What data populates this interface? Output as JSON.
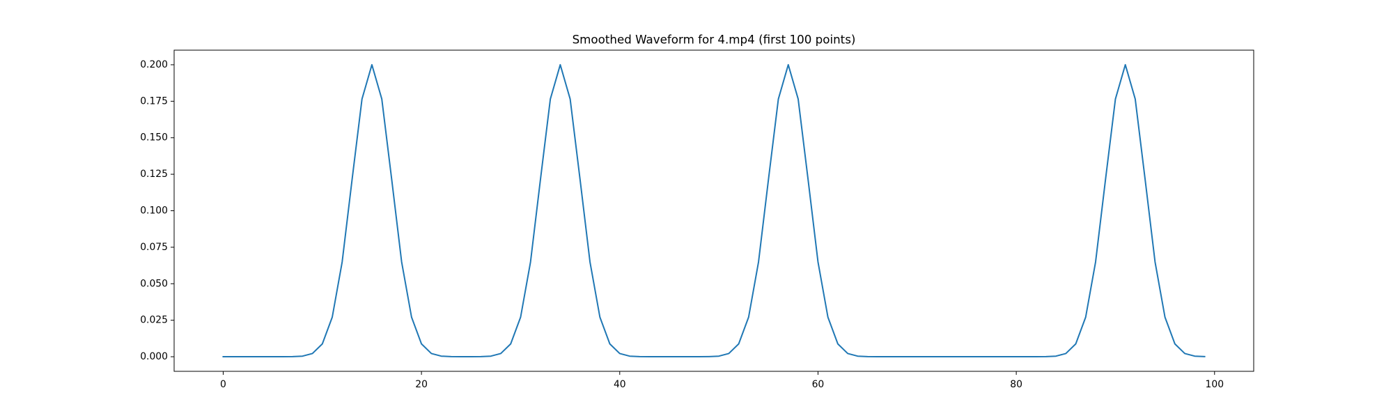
{
  "chart_data": {
    "type": "line",
    "title": "Smoothed Waveform for 4.mp4 (first 100 points)",
    "x": [
      0,
      1,
      2,
      3,
      4,
      5,
      6,
      7,
      8,
      9,
      10,
      11,
      12,
      13,
      14,
      15,
      16,
      17,
      18,
      19,
      20,
      21,
      22,
      23,
      24,
      25,
      26,
      27,
      28,
      29,
      30,
      31,
      32,
      33,
      34,
      35,
      36,
      37,
      38,
      39,
      40,
      41,
      42,
      43,
      44,
      45,
      46,
      47,
      48,
      49,
      50,
      51,
      52,
      53,
      54,
      55,
      56,
      57,
      58,
      59,
      60,
      61,
      62,
      63,
      64,
      65,
      66,
      67,
      68,
      69,
      70,
      71,
      72,
      73,
      74,
      75,
      76,
      77,
      78,
      79,
      80,
      81,
      82,
      83,
      84,
      85,
      86,
      87,
      88,
      89,
      90,
      91,
      92,
      93,
      94,
      95,
      96,
      97,
      98,
      99
    ],
    "values": [
      0,
      0,
      0,
      0,
      0,
      0,
      0,
      0.0001,
      0.0004,
      0.0022,
      0.0088,
      0.0271,
      0.0649,
      0.1213,
      0.1765,
      0.2,
      0.1765,
      0.1213,
      0.0649,
      0.0271,
      0.0088,
      0.0022,
      0.0004,
      0.0001,
      0,
      0,
      0.0001,
      0.0004,
      0.0022,
      0.0088,
      0.0271,
      0.0649,
      0.1213,
      0.1765,
      0.2,
      0.1765,
      0.1213,
      0.0649,
      0.0271,
      0.0088,
      0.0022,
      0.0004,
      0.0001,
      0,
      0,
      0,
      0,
      0,
      0,
      0.0001,
      0.0004,
      0.0022,
      0.0088,
      0.0271,
      0.0649,
      0.1213,
      0.1765,
      0.2,
      0.1765,
      0.1213,
      0.0649,
      0.0271,
      0.0088,
      0.0022,
      0.0004,
      0.0001,
      0,
      0,
      0,
      0,
      0,
      0,
      0,
      0,
      0,
      0,
      0,
      0,
      0,
      0,
      0,
      0,
      0,
      0.0001,
      0.0004,
      0.0022,
      0.0088,
      0.0271,
      0.0649,
      0.1213,
      0.1765,
      0.2,
      0.1765,
      0.1213,
      0.0649,
      0.0271,
      0.0088,
      0.0022,
      0.0004,
      0.0001
    ],
    "color": "#1f77b4",
    "xlim": [
      -4.95,
      103.95
    ],
    "xticks": [
      0,
      20,
      40,
      60,
      80,
      100
    ],
    "ylim": [
      -0.01,
      0.21
    ],
    "yticks": [
      {
        "value": 0,
        "label": "0.000"
      },
      {
        "value": 0.025,
        "label": "0.025"
      },
      {
        "value": 0.05,
        "label": "0.050"
      },
      {
        "value": 0.075,
        "label": "0.075"
      },
      {
        "value": 0.1,
        "label": "0.100"
      },
      {
        "value": 0.125,
        "label": "0.125"
      },
      {
        "value": 0.15,
        "label": "0.150"
      },
      {
        "value": 0.175,
        "label": "0.175"
      },
      {
        "value": 0.2,
        "label": "0.200"
      }
    ],
    "grid": false
  }
}
